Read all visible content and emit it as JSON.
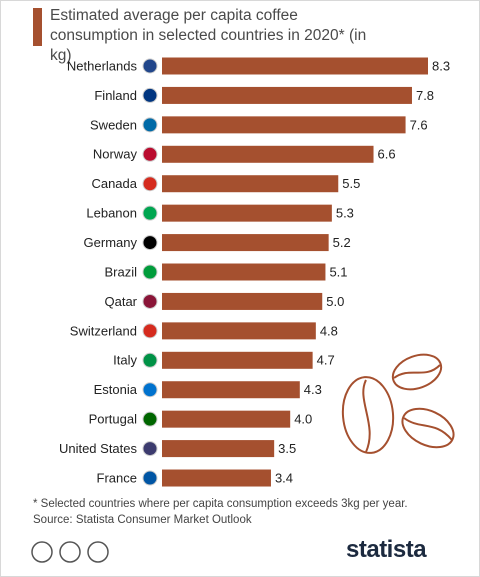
{
  "chart_data": {
    "type": "bar",
    "orientation": "horizontal",
    "title": "Estimated average per capita coffee consumption in selected countries in 2020* (in kg)",
    "categories": [
      "Netherlands",
      "Finland",
      "Sweden",
      "Norway",
      "Canada",
      "Lebanon",
      "Germany",
      "Brazil",
      "Qatar",
      "Switzerland",
      "Italy",
      "Estonia",
      "Portugal",
      "United States",
      "France"
    ],
    "values": [
      8.3,
      7.8,
      7.6,
      6.6,
      5.5,
      5.3,
      5.2,
      5.1,
      5.0,
      4.8,
      4.7,
      4.3,
      4.0,
      3.5,
      3.4
    ],
    "value_labels": [
      "8.3",
      "7.8",
      "7.6",
      "6.6",
      "5.5",
      "5.3",
      "5.2",
      "5.1",
      "5.0",
      "4.8",
      "4.7",
      "4.3",
      "4.0",
      "3.5",
      "3.4"
    ],
    "color": "#a5502f",
    "note": "* Selected countries where per capita consumption exceeds 3kg per year.",
    "source": "Source: Statista Consumer Market Outlook",
    "logo": "statista"
  }
}
